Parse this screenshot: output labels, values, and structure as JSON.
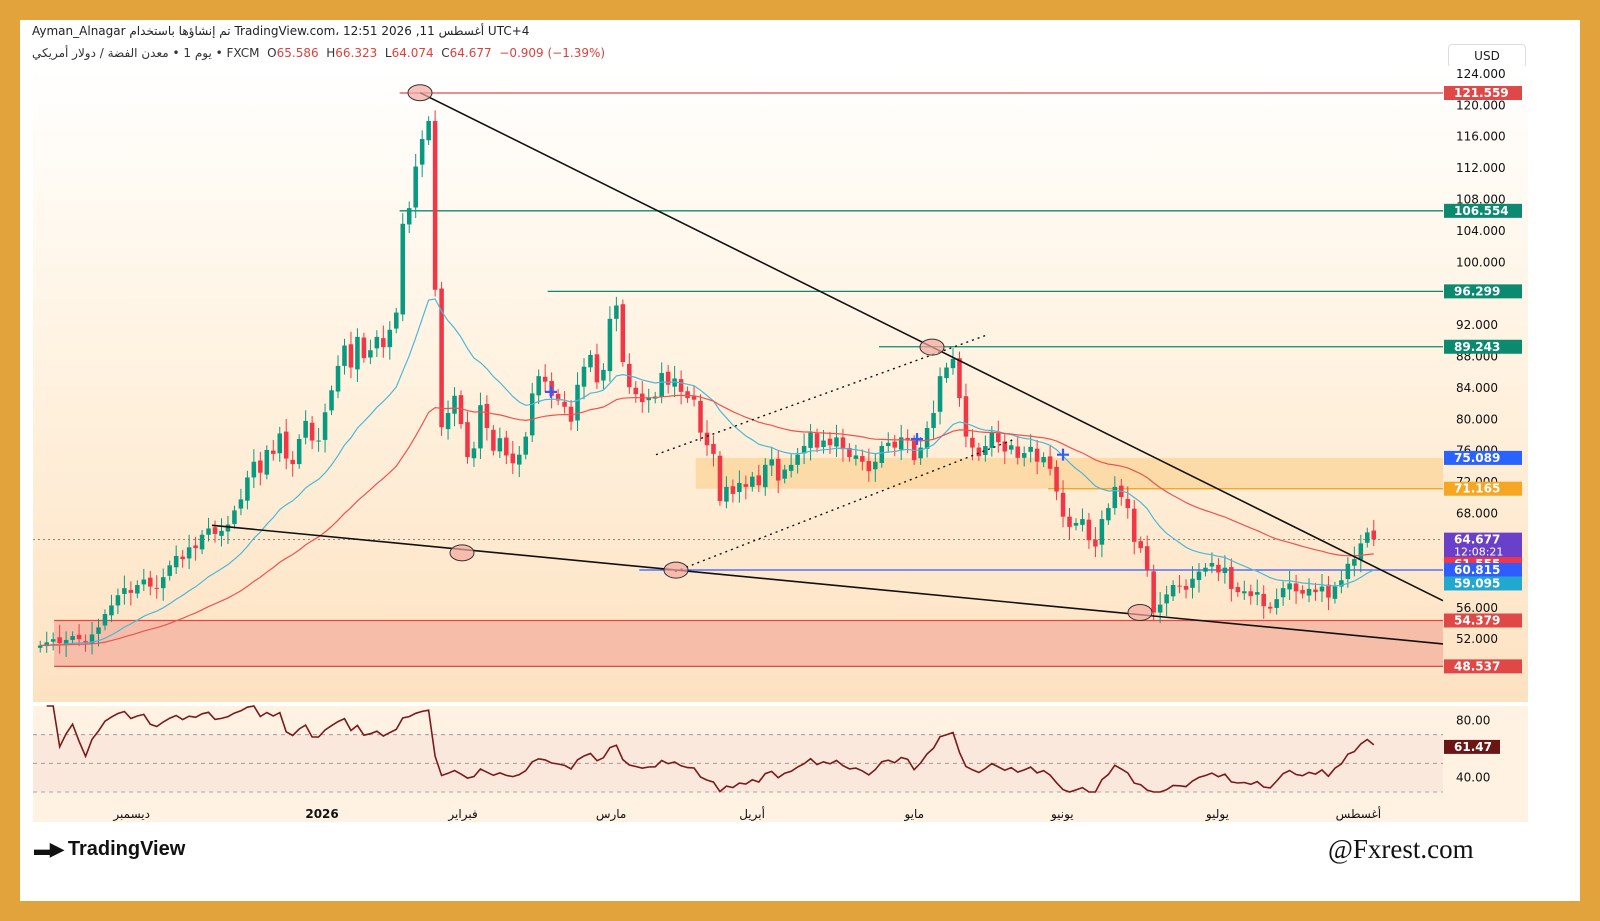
{
  "header": {
    "line1": "Ayman_Alnagar تم إنشاؤها باستخدام TradingView.com، 12:51 2026 ,11 أغسطس UTC+4",
    "symbol": "يوم 1 • معدن الفضة / دولار أمريكي • FXCM",
    "open_label": "O",
    "open": "65.586",
    "high_label": "H",
    "high": "66.323",
    "low_label": "L",
    "low": "64.074",
    "close_label": "C",
    "close": "64.677",
    "change": "−0.909 (−1.39%)",
    "currency": "USD"
  },
  "footer": {
    "logo_text": "TradingView",
    "watermark": "@Fxrest.com"
  },
  "colors": {
    "frame": "#e3a33c",
    "bull": "#089981",
    "bear": "#f23645",
    "ema_fast": "#4cb8d8",
    "ema_slow": "#ef5350",
    "level_green": "#0b8a6f",
    "level_red": "#e04848",
    "support_blue": "#2f5cff",
    "rsi": "#7a1a1a",
    "zone_orange": "#fcd7a0",
    "zone_red": "#f5b6a3"
  },
  "chart_data": {
    "type": "candlestick",
    "symbol": "XAG/USD",
    "timeframe": "1D",
    "ylim": [
      44,
      125
    ],
    "y_ticks": [
      "124.000",
      "120.000",
      "116.000",
      "112.000",
      "108.000",
      "104.000",
      "100.000",
      "96.000",
      "92.000",
      "88.000",
      "84.000",
      "80.000",
      "76.000",
      "72.000",
      "68.000",
      "64.000",
      "60.000",
      "56.000",
      "52.000"
    ],
    "x_labels": [
      "ديسمبر",
      "2026",
      "فبراير",
      "مارس",
      "أبريل",
      "مايو",
      "يونيو",
      "يوليو",
      "أغسطس"
    ],
    "x_label_positions": [
      0.07,
      0.205,
      0.305,
      0.41,
      0.51,
      0.625,
      0.73,
      0.84,
      0.94
    ],
    "price_labels": [
      {
        "value": 121.559,
        "text": "121.559",
        "color": "#e04848"
      },
      {
        "value": 106.554,
        "text": "106.554",
        "color": "#0b8a6f"
      },
      {
        "value": 96.299,
        "text": "96.299",
        "color": "#0b8a6f"
      },
      {
        "value": 89.243,
        "text": "89.243",
        "color": "#0b8a6f"
      },
      {
        "value": 75.089,
        "text": "75.089",
        "color": "#2962ff"
      },
      {
        "value": 71.165,
        "text": "71.165",
        "color": "#f5a623"
      },
      {
        "value": 64.677,
        "text": "64.677",
        "sub": "12:08:21",
        "color": "#6a3fc9"
      },
      {
        "value": 61.555,
        "text": "61.555",
        "color": "#f23645"
      },
      {
        "value": 60.815,
        "text": "60.815",
        "color": "#2f5cff"
      },
      {
        "value": 59.095,
        "text": "59.095",
        "color": "#22a8cf"
      },
      {
        "value": 54.379,
        "text": "54.379",
        "color": "#e04848"
      },
      {
        "value": 48.537,
        "text": "48.537",
        "color": "#e04848"
      }
    ],
    "horizontal_levels": [
      {
        "value": 121.559,
        "start": 0.26,
        "color": "#e04848"
      },
      {
        "value": 106.554,
        "start": 0.26,
        "color": "#0b8a6f"
      },
      {
        "value": 96.299,
        "start": 0.365,
        "color": "#0b8a6f"
      },
      {
        "value": 89.243,
        "start": 0.6,
        "color": "#0b8a6f"
      },
      {
        "value": 71.165,
        "start": 0.72,
        "color": "#f5a623"
      },
      {
        "value": 60.815,
        "start": 0.43,
        "color": "#2f5cff"
      },
      {
        "value": 54.379,
        "start": 0.015,
        "color": "#e04848"
      },
      {
        "value": 48.537,
        "start": 0.015,
        "color": "#e04848"
      }
    ],
    "zones": [
      {
        "from": 71.165,
        "to": 75.089,
        "start": 0.47,
        "color": "#fcd7a0"
      },
      {
        "from": 48.537,
        "to": 54.379,
        "start": 0.015,
        "color": "#f5b6a3"
      }
    ],
    "closes": [
      51.2,
      51.6,
      52.0,
      51.5,
      51.9,
      52.4,
      52.0,
      51.5,
      52.6,
      53.5,
      55.2,
      56.3,
      57.6,
      58.5,
      57.9,
      58.9,
      59.6,
      58.7,
      58.5,
      59.9,
      61.4,
      62.6,
      62.2,
      63.7,
      63.6,
      65.3,
      66.1,
      65.4,
      65.8,
      66.6,
      68.4,
      69.8,
      72.6,
      74.6,
      73.2,
      76.1,
      75.6,
      78.2,
      75.0,
      74.3,
      77.5,
      79.8,
      77.3,
      77.3,
      80.9,
      83.7,
      86.8,
      89.4,
      86.6,
      90.5,
      87.8,
      88.8,
      90.5,
      89.2,
      91.4,
      93.6,
      104.9,
      106.9,
      112.2,
      115.7,
      118.0,
      96.5,
      79.0,
      80.8,
      83.0,
      79.4,
      75.2,
      76.3,
      81.8,
      78.9,
      76.0,
      77.6,
      75.4,
      74.4,
      75.5,
      77.8,
      83.3,
      85.5,
      84.8,
      83.0,
      82.4,
      81.6,
      79.7,
      84.4,
      86.7,
      88.2,
      84.7,
      86.3,
      92.8,
      94.5,
      87.3,
      84.1,
      83.2,
      82.2,
      82.8,
      82.9,
      85.9,
      84.4,
      85.2,
      83.5,
      82.7,
      82.5,
      78.3,
      76.7,
      75.6,
      69.6,
      71.4,
      70.5,
      71.9,
      71.4,
      72.7,
      71.6,
      74.2,
      74.9,
      72.2,
      73.6,
      74.2,
      75.5,
      76.6,
      78.3,
      76.4,
      77.3,
      76.7,
      77.7,
      76.2,
      75.2,
      75.4,
      74.6,
      73.4,
      74.6,
      76.6,
      77.0,
      76.4,
      77.7,
      77.3,
      74.8,
      76.4,
      78.9,
      80.8,
      85.5,
      86.6,
      87.7,
      82.7,
      77.8,
      76.4,
      75.3,
      76.6,
      78.3,
      77.1,
      75.9,
      76.7,
      75.1,
      75.7,
      76.5,
      74.6,
      75.2,
      73.7,
      70.8,
      67.6,
      66.3,
      66.8,
      67.3,
      64.6,
      63.8,
      67.3,
      68.7,
      71.4,
      70.1,
      68.7,
      64.4,
      63.6,
      60.8,
      55.4,
      56.4,
      57.7,
      58.9,
      58.7,
      58.3,
      59.7,
      60.6,
      61.1,
      61.7,
      60.5,
      61.1,
      58.4,
      58.0,
      58.1,
      57.5,
      58.0,
      56.2,
      55.9,
      57.1,
      58.5,
      59.1,
      58.1,
      57.8,
      58.4,
      58.0,
      58.7,
      57.3,
      58.7,
      59.5,
      61.6,
      62.2,
      64.2,
      65.6,
      64.7
    ],
    "rsi": {
      "value": 61.47,
      "label": "61.47",
      "ticks": [
        "80.00",
        "40.00"
      ],
      "ylim": [
        30,
        90
      ]
    }
  }
}
